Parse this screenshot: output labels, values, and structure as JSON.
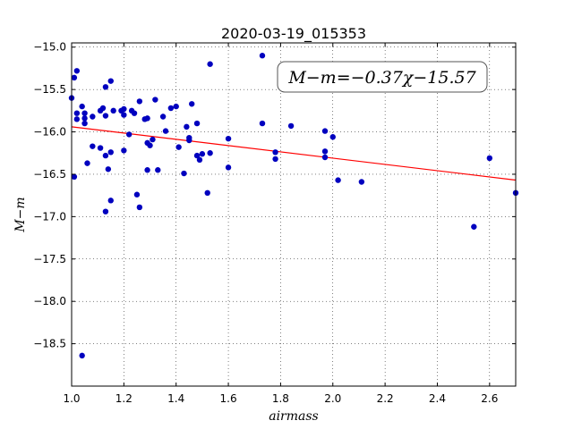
{
  "chart_data": {
    "type": "scatter",
    "title": "2020-03-19_015353",
    "xlabel": "airmass",
    "ylabel": "M−m",
    "xlim": [
      1.0,
      2.7
    ],
    "ylim": [
      -19.0,
      -14.95
    ],
    "y_inverted": true,
    "grid": true,
    "x_ticks": [
      1.0,
      1.2,
      1.4,
      1.6,
      1.8,
      2.0,
      2.2,
      2.4,
      2.6
    ],
    "x_tick_labels": [
      "1.0",
      "1.2",
      "1.4",
      "1.6",
      "1.8",
      "2.0",
      "2.2",
      "2.4",
      "2.6"
    ],
    "y_ticks": [
      -15.0,
      -15.5,
      -16.0,
      -16.5,
      -17.0,
      -17.5,
      -18.0,
      -18.5
    ],
    "y_tick_labels": [
      "−15.0",
      "−15.5",
      "−16.0",
      "−16.5",
      "−17.0",
      "−17.5",
      "−18.0",
      "−18.5"
    ],
    "annotation": "M−m=−0.37χ−15.57",
    "series": [
      {
        "kind": "points",
        "color": "#0000bf",
        "points": [
          [
            1.0,
            -15.6
          ],
          [
            1.01,
            -16.53
          ],
          [
            1.01,
            -15.36
          ],
          [
            1.02,
            -15.28
          ],
          [
            1.02,
            -15.78
          ],
          [
            1.02,
            -15.85
          ],
          [
            1.04,
            -18.64
          ],
          [
            1.04,
            -15.7
          ],
          [
            1.05,
            -15.78
          ],
          [
            1.05,
            -15.84
          ],
          [
            1.05,
            -15.9
          ],
          [
            1.06,
            -16.37
          ],
          [
            1.08,
            -15.82
          ],
          [
            1.08,
            -16.17
          ],
          [
            1.11,
            -16.19
          ],
          [
            1.11,
            -15.75
          ],
          [
            1.12,
            -15.72
          ],
          [
            1.13,
            -15.47
          ],
          [
            1.13,
            -16.94
          ],
          [
            1.13,
            -16.28
          ],
          [
            1.13,
            -15.81
          ],
          [
            1.14,
            -16.44
          ],
          [
            1.15,
            -16.24
          ],
          [
            1.15,
            -16.81
          ],
          [
            1.15,
            -15.4
          ],
          [
            1.16,
            -15.75
          ],
          [
            1.19,
            -15.75
          ],
          [
            1.2,
            -15.8
          ],
          [
            1.2,
            -16.22
          ],
          [
            1.2,
            -15.73
          ],
          [
            1.22,
            -16.03
          ],
          [
            1.23,
            -15.75
          ],
          [
            1.24,
            -15.78
          ],
          [
            1.25,
            -16.74
          ],
          [
            1.26,
            -15.64
          ],
          [
            1.26,
            -16.89
          ],
          [
            1.28,
            -15.85
          ],
          [
            1.29,
            -15.84
          ],
          [
            1.29,
            -16.13
          ],
          [
            1.29,
            -16.45
          ],
          [
            1.3,
            -16.16
          ],
          [
            1.31,
            -16.09
          ],
          [
            1.32,
            -15.62
          ],
          [
            1.33,
            -16.45
          ],
          [
            1.35,
            -15.82
          ],
          [
            1.36,
            -15.99
          ],
          [
            1.38,
            -15.72
          ],
          [
            1.4,
            -15.7
          ],
          [
            1.41,
            -16.18
          ],
          [
            1.43,
            -16.49
          ],
          [
            1.44,
            -15.94
          ],
          [
            1.45,
            -16.07
          ],
          [
            1.45,
            -16.1
          ],
          [
            1.46,
            -15.67
          ],
          [
            1.48,
            -16.28
          ],
          [
            1.48,
            -15.9
          ],
          [
            1.49,
            -16.33
          ],
          [
            1.5,
            -16.26
          ],
          [
            1.52,
            -16.72
          ],
          [
            1.53,
            -16.25
          ],
          [
            1.53,
            -15.2
          ],
          [
            1.6,
            -16.08
          ],
          [
            1.6,
            -16.42
          ],
          [
            1.73,
            -15.1
          ],
          [
            1.73,
            -15.9
          ],
          [
            1.78,
            -16.32
          ],
          [
            1.78,
            -16.24
          ],
          [
            1.84,
            -15.93
          ],
          [
            1.97,
            -15.99
          ],
          [
            1.97,
            -16.3
          ],
          [
            1.97,
            -16.23
          ],
          [
            2.0,
            -16.06
          ],
          [
            2.02,
            -16.57
          ],
          [
            2.11,
            -16.59
          ],
          [
            2.54,
            -17.12
          ],
          [
            2.6,
            -16.31
          ],
          [
            2.7,
            -16.72
          ]
        ]
      },
      {
        "kind": "fit-line",
        "color": "#ff0000",
        "slope": -0.37,
        "intercept": -15.57
      }
    ]
  }
}
